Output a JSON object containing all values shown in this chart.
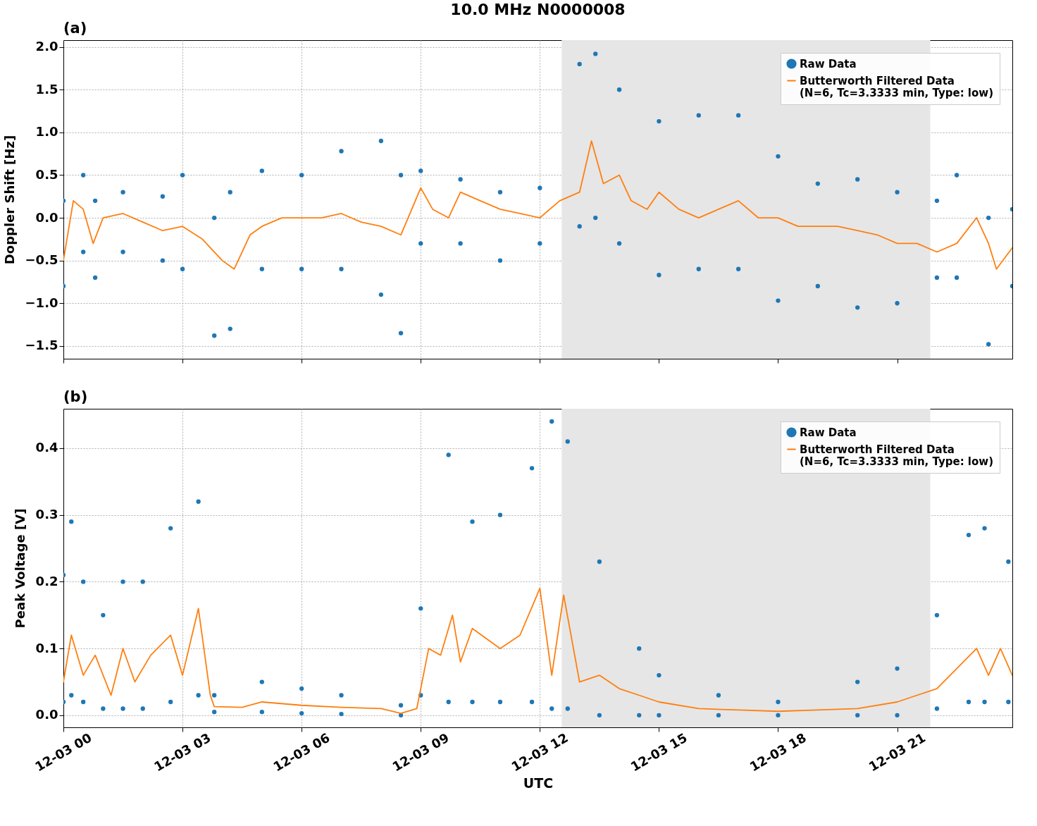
{
  "chart_data": [
    {
      "type": "scatter",
      "title": "10.0 MHz N0000008",
      "ylabel": "Doppler Shift [Hz]",
      "annotations": [
        "(a)"
      ],
      "xlim": [
        "--12-03T00:00",
        "--12-03T23:54"
      ],
      "xticks": [
        {
          "value": "--12-03T00:00",
          "label": "12-03 00"
        },
        {
          "value": "--12-03T03:00",
          "label": "12-03 03"
        },
        {
          "value": "--12-03T06:00",
          "label": "12-03 06"
        },
        {
          "value": "--12-03T09:00",
          "label": "12-03 09"
        },
        {
          "value": "--12-03T12:00",
          "label": "12-03 12"
        },
        {
          "value": "--12-03T15:00",
          "label": "12-03 15"
        },
        {
          "value": "--12-03T18:00",
          "label": "12-03 18"
        },
        {
          "value": "--12-03T21:00",
          "label": "12-03 21"
        }
      ],
      "ylim": [
        -1.65,
        2.08
      ],
      "yticks": [
        {
          "value": -1.5,
          "label": "−1.5"
        },
        {
          "value": -1.0,
          "label": "−1.0"
        },
        {
          "value": -0.5,
          "label": "−0.5"
        },
        {
          "value": 0,
          "label": "0.0"
        },
        {
          "value": 0.5,
          "label": "0.5"
        },
        {
          "value": 1,
          "label": "1.0"
        },
        {
          "value": 1.5,
          "label": "1.5"
        },
        {
          "value": 2,
          "label": "2.0"
        }
      ],
      "tick_labels": "y",
      "grid": true,
      "legend": "top right",
      "bands": [
        {
          "axis": "x",
          "from": "--12-03T12:33",
          "to": "--12-03T21:50",
          "color": "#e6e6e6"
        }
      ],
      "series": [
        {
          "name": "Raw Data",
          "color": "#1f77b4",
          "marker": "circle",
          "x": [
            "--12-03T00:00",
            "--12-03T00:00",
            "--12-03T00:30",
            "--12-03T00:30",
            "--12-03T00:48",
            "--12-03T00:48",
            "--12-03T01:30",
            "--12-03T01:30",
            "--12-03T02:30",
            "--12-03T02:30",
            "--12-03T03:00",
            "--12-03T03:00",
            "--12-03T03:48",
            "--12-03T03:48",
            "--12-03T04:12",
            "--12-03T04:12",
            "--12-03T05:00",
            "--12-03T05:00",
            "--12-03T06:00",
            "--12-03T06:00",
            "--12-03T07:00",
            "--12-03T07:00",
            "--12-03T08:00",
            "--12-03T08:00",
            "--12-03T08:30",
            "--12-03T08:30",
            "--12-03T09:00",
            "--12-03T09:00",
            "--12-03T10:00",
            "--12-03T10:00",
            "--12-03T11:00",
            "--12-03T11:00",
            "--12-03T12:00",
            "--12-03T12:00",
            "--12-03T13:00",
            "--12-03T13:00",
            "--12-03T13:24",
            "--12-03T13:24",
            "--12-03T14:00",
            "--12-03T14:00",
            "--12-03T15:00",
            "--12-03T15:00",
            "--12-03T16:00",
            "--12-03T16:00",
            "--12-03T17:00",
            "--12-03T17:00",
            "--12-03T18:00",
            "--12-03T18:00",
            "--12-03T19:00",
            "--12-03T19:00",
            "--12-03T20:00",
            "--12-03T20:00",
            "--12-03T21:00",
            "--12-03T21:00",
            "--12-03T22:00",
            "--12-03T22:00",
            "--12-03T22:30",
            "--12-03T22:30",
            "--12-03T23:18",
            "--12-03T23:18",
            "--12-03T23:54",
            "--12-03T23:54"
          ],
          "values": [
            0.2,
            -0.8,
            0.5,
            -0.4,
            0.2,
            -0.7,
            0.3,
            -0.4,
            0.25,
            -0.5,
            0.5,
            -0.6,
            0.0,
            -1.38,
            0.3,
            -1.3,
            0.55,
            -0.6,
            0.5,
            -0.6,
            0.78,
            -0.6,
            0.9,
            -0.9,
            0.5,
            -1.35,
            0.55,
            -0.3,
            0.45,
            -0.3,
            0.3,
            -0.5,
            0.35,
            -0.3,
            1.8,
            -0.1,
            1.92,
            0.0,
            1.5,
            -0.3,
            1.13,
            -0.67,
            1.2,
            -0.6,
            1.2,
            -0.6,
            0.72,
            -0.97,
            0.4,
            -0.8,
            0.45,
            -1.05,
            0.3,
            -1.0,
            0.2,
            -0.7,
            0.5,
            -0.7,
            0.0,
            -1.48,
            0.1,
            -0.8
          ]
        },
        {
          "name": "Butterworth Filtered Data\n(N=6, Tc=3.3333 min, Type: low)",
          "type": "line",
          "color": "#ff7f0e",
          "x": [
            "--12-03T00:00",
            "--12-03T00:15",
            "--12-03T00:30",
            "--12-03T00:45",
            "--12-03T01:00",
            "--12-03T01:30",
            "--12-03T02:00",
            "--12-03T02:30",
            "--12-03T03:00",
            "--12-03T03:30",
            "--12-03T04:00",
            "--12-03T04:18",
            "--12-03T04:42",
            "--12-03T05:00",
            "--12-03T05:30",
            "--12-03T06:00",
            "--12-03T06:30",
            "--12-03T07:00",
            "--12-03T07:30",
            "--12-03T08:00",
            "--12-03T08:30",
            "--12-03T09:00",
            "--12-03T09:18",
            "--12-03T09:42",
            "--12-03T10:00",
            "--12-03T10:30",
            "--12-03T11:00",
            "--12-03T11:30",
            "--12-03T12:00",
            "--12-03T12:30",
            "--12-03T13:00",
            "--12-03T13:18",
            "--12-03T13:36",
            "--12-03T14:00",
            "--12-03T14:18",
            "--12-03T14:42",
            "--12-03T15:00",
            "--12-03T15:30",
            "--12-03T16:00",
            "--12-03T16:30",
            "--12-03T17:00",
            "--12-03T17:30",
            "--12-03T18:00",
            "--12-03T18:30",
            "--12-03T19:00",
            "--12-03T19:30",
            "--12-03T20:00",
            "--12-03T20:30",
            "--12-03T21:00",
            "--12-03T21:30",
            "--12-03T22:00",
            "--12-03T22:30",
            "--12-03T23:00",
            "--12-03T23:18",
            "--12-03T23:30",
            "--12-03T23:54"
          ],
          "values": [
            -0.5,
            0.2,
            0.1,
            -0.3,
            0.0,
            0.05,
            -0.05,
            -0.15,
            -0.1,
            -0.25,
            -0.5,
            -0.6,
            -0.2,
            -0.1,
            0.0,
            0.0,
            0.0,
            0.05,
            -0.05,
            -0.1,
            -0.2,
            0.35,
            0.1,
            0.0,
            0.3,
            0.2,
            0.1,
            0.05,
            0.0,
            0.2,
            0.3,
            0.9,
            0.4,
            0.5,
            0.2,
            0.1,
            0.3,
            0.1,
            0.0,
            0.1,
            0.2,
            0.0,
            0.0,
            -0.1,
            -0.1,
            -0.1,
            -0.15,
            -0.2,
            -0.3,
            -0.3,
            -0.4,
            -0.3,
            0.0,
            -0.3,
            -0.6,
            -0.35
          ]
        }
      ]
    },
    {
      "type": "scatter",
      "xlabel": "UTC",
      "ylabel": "Peak Voltage [V]",
      "annotations": [
        "(b)"
      ],
      "xlim": [
        "--12-03T00:00",
        "--12-03T23:54"
      ],
      "xticks": [
        {
          "value": "--12-03T00:00",
          "label": "12-03 00"
        },
        {
          "value": "--12-03T03:00",
          "label": "12-03 03"
        },
        {
          "value": "--12-03T06:00",
          "label": "12-03 06"
        },
        {
          "value": "--12-03T09:00",
          "label": "12-03 09"
        },
        {
          "value": "--12-03T12:00",
          "label": "12-03 12"
        },
        {
          "value": "--12-03T15:00",
          "label": "12-03 15"
        },
        {
          "value": "--12-03T18:00",
          "label": "12-03 18"
        },
        {
          "value": "--12-03T21:00",
          "label": "12-03 21"
        }
      ],
      "ylim": [
        -0.018,
        0.459
      ],
      "yticks": [
        {
          "value": 0,
          "label": "0.0"
        },
        {
          "value": 0.1,
          "label": "0.1"
        },
        {
          "value": 0.2,
          "label": "0.2"
        },
        {
          "value": 0.3,
          "label": "0.3"
        },
        {
          "value": 0.4,
          "label": "0.4"
        }
      ],
      "grid": true,
      "legend": "top right",
      "bands": [
        {
          "axis": "x",
          "from": "--12-03T12:33",
          "to": "--12-03T21:50",
          "color": "#e6e6e6"
        }
      ],
      "series": [
        {
          "name": "Raw Data",
          "color": "#1f77b4",
          "marker": "circle",
          "x": [
            "--12-03T00:00",
            "--12-03T00:00",
            "--12-03T00:12",
            "--12-03T00:12",
            "--12-03T00:30",
            "--12-03T00:30",
            "--12-03T01:00",
            "--12-03T01:00",
            "--12-03T01:30",
            "--12-03T01:30",
            "--12-03T02:00",
            "--12-03T02:00",
            "--12-03T02:42",
            "--12-03T02:42",
            "--12-03T03:24",
            "--12-03T03:24",
            "--12-03T03:48",
            "--12-03T03:48",
            "--12-03T05:00",
            "--12-03T05:00",
            "--12-03T06:00",
            "--12-03T06:00",
            "--12-03T07:00",
            "--12-03T07:00",
            "--12-03T08:30",
            "--12-03T08:30",
            "--12-03T09:00",
            "--12-03T09:00",
            "--12-03T09:42",
            "--12-03T09:42",
            "--12-03T10:18",
            "--12-03T10:18",
            "--12-03T11:00",
            "--12-03T11:00",
            "--12-03T11:48",
            "--12-03T11:48",
            "--12-03T12:18",
            "--12-03T12:18",
            "--12-03T12:42",
            "--12-03T12:42",
            "--12-03T13:30",
            "--12-03T13:30",
            "--12-03T14:30",
            "--12-03T14:30",
            "--12-03T15:00",
            "--12-03T15:00",
            "--12-03T16:30",
            "--12-03T16:30",
            "--12-03T18:00",
            "--12-03T18:00",
            "--12-03T20:00",
            "--12-03T20:00",
            "--12-03T21:00",
            "--12-03T21:00",
            "--12-03T22:00",
            "--12-03T22:00",
            "--12-03T22:48",
            "--12-03T22:48",
            "--12-03T23:12",
            "--12-03T23:12",
            "--12-03T23:48",
            "--12-03T23:48"
          ],
          "values": [
            0.21,
            0.02,
            0.29,
            0.03,
            0.2,
            0.02,
            0.15,
            0.01,
            0.2,
            0.01,
            0.2,
            0.01,
            0.28,
            0.02,
            0.32,
            0.03,
            0.03,
            0.005,
            0.05,
            0.005,
            0.04,
            0.003,
            0.03,
            0.002,
            0.015,
            0.0,
            0.16,
            0.03,
            0.39,
            0.02,
            0.29,
            0.02,
            0.3,
            0.02,
            0.37,
            0.02,
            0.44,
            0.01,
            0.41,
            0.01,
            0.23,
            0.0,
            0.1,
            0.0,
            0.06,
            0.0,
            0.03,
            0.0,
            0.02,
            0.0,
            0.05,
            0.0,
            0.07,
            0.0,
            0.15,
            0.01,
            0.27,
            0.02,
            0.28,
            0.02,
            0.23,
            0.02
          ]
        },
        {
          "name": "Butterworth Filtered Data\n(N=6, Tc=3.3333 min, Type: low)",
          "type": "line",
          "color": "#ff7f0e",
          "x": [
            "--12-03T00:00",
            "--12-03T00:12",
            "--12-03T00:30",
            "--12-03T00:48",
            "--12-03T01:12",
            "--12-03T01:30",
            "--12-03T01:48",
            "--12-03T02:12",
            "--12-03T02:42",
            "--12-03T03:00",
            "--12-03T03:24",
            "--12-03T03:42",
            "--12-03T03:48",
            "--12-03T04:30",
            "--12-03T05:00",
            "--12-03T06:00",
            "--12-03T07:00",
            "--12-03T08:00",
            "--12-03T08:30",
            "--12-03T08:54",
            "--12-03T09:12",
            "--12-03T09:30",
            "--12-03T09:48",
            "--12-03T10:00",
            "--12-03T10:18",
            "--12-03T11:00",
            "--12-03T11:30",
            "--12-03T12:00",
            "--12-03T12:18",
            "--12-03T12:36",
            "--12-03T13:00",
            "--12-03T13:30",
            "--12-03T14:00",
            "--12-03T14:30",
            "--12-03T15:00",
            "--12-03T16:00",
            "--12-03T17:00",
            "--12-03T18:00",
            "--12-03T19:00",
            "--12-03T20:00",
            "--12-03T21:00",
            "--12-03T21:30",
            "--12-03T22:00",
            "--12-03T22:30",
            "--12-03T23:00",
            "--12-03T23:18",
            "--12-03T23:36",
            "--12-03T23:54"
          ],
          "values": [
            0.05,
            0.12,
            0.06,
            0.09,
            0.03,
            0.1,
            0.05,
            0.09,
            0.12,
            0.06,
            0.16,
            0.03,
            0.013,
            0.012,
            0.02,
            0.015,
            0.012,
            0.01,
            0.003,
            0.01,
            0.1,
            0.09,
            0.15,
            0.08,
            0.13,
            0.1,
            0.12,
            0.19,
            0.06,
            0.18,
            0.05,
            0.06,
            0.04,
            0.03,
            0.02,
            0.01,
            0.008,
            0.006,
            0.008,
            0.01,
            0.02,
            0.03,
            0.04,
            0.07,
            0.1,
            0.06,
            0.1,
            0.06
          ]
        }
      ]
    }
  ]
}
